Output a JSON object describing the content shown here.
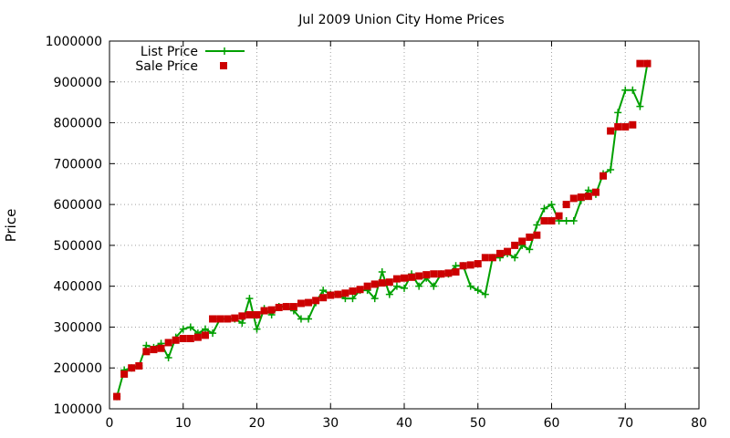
{
  "chart_data": {
    "type": "line",
    "title": "Jul 2009 Union City Home Prices",
    "xlabel": "",
    "ylabel": "Price",
    "xlim": [
      0,
      80
    ],
    "ylim": [
      100000,
      1000000
    ],
    "x_ticks": [
      "0",
      "10",
      "20",
      "30",
      "40",
      "50",
      "60",
      "70",
      "80"
    ],
    "y_ticks": [
      "100000",
      "200000",
      "300000",
      "400000",
      "500000",
      "600000",
      "700000",
      "800000",
      "900000",
      "1000000"
    ],
    "grid": true,
    "legend_position": "top-left",
    "series": [
      {
        "name": "List Price",
        "style": "line-plus",
        "color": "#00a000",
        "x": [
          1,
          2,
          3,
          4,
          5,
          6,
          7,
          8,
          9,
          10,
          11,
          12,
          13,
          14,
          15,
          16,
          17,
          18,
          19,
          20,
          21,
          22,
          23,
          24,
          25,
          26,
          27,
          28,
          29,
          30,
          31,
          32,
          33,
          34,
          35,
          36,
          37,
          38,
          39,
          40,
          41,
          42,
          43,
          44,
          45,
          46,
          47,
          48,
          49,
          50,
          51,
          52,
          53,
          54,
          55,
          56,
          57,
          58,
          59,
          60,
          61,
          62,
          63,
          64,
          65,
          66,
          67,
          68,
          69,
          70,
          71,
          72,
          73
        ],
        "values": [
          130000,
          195000,
          200000,
          205000,
          255000,
          250000,
          260000,
          225000,
          275000,
          295000,
          300000,
          285000,
          295000,
          285000,
          320000,
          320000,
          320000,
          310000,
          370000,
          295000,
          345000,
          330000,
          350000,
          350000,
          340000,
          320000,
          320000,
          360000,
          390000,
          380000,
          380000,
          370000,
          370000,
          390000,
          390000,
          370000,
          435000,
          380000,
          400000,
          395000,
          430000,
          400000,
          420000,
          400000,
          430000,
          430000,
          450000,
          450000,
          400000,
          390000,
          380000,
          470000,
          470000,
          480000,
          470000,
          500000,
          490000,
          550000,
          590000,
          600000,
          560000,
          560000,
          560000,
          610000,
          635000,
          625000,
          675000,
          685000,
          825000,
          880000,
          880000,
          840000,
          945000
        ]
      },
      {
        "name": "Sale Price",
        "style": "square-points",
        "color": "#cc0000",
        "x": [
          1,
          2,
          3,
          4,
          5,
          6,
          7,
          8,
          9,
          10,
          11,
          12,
          13,
          14,
          15,
          16,
          17,
          18,
          19,
          20,
          21,
          22,
          23,
          24,
          25,
          26,
          27,
          28,
          29,
          30,
          31,
          32,
          33,
          34,
          35,
          36,
          37,
          38,
          39,
          40,
          41,
          42,
          43,
          44,
          45,
          46,
          47,
          48,
          49,
          50,
          51,
          52,
          53,
          54,
          55,
          56,
          57,
          58,
          59,
          60,
          61,
          62,
          63,
          64,
          65,
          66,
          67,
          68,
          69,
          70,
          71,
          72,
          73
        ],
        "values": [
          130000,
          185000,
          200000,
          205000,
          240000,
          245000,
          248000,
          262000,
          268000,
          272000,
          272000,
          275000,
          280000,
          320000,
          320000,
          320000,
          322000,
          327000,
          330000,
          330000,
          340000,
          342000,
          348000,
          350000,
          350000,
          358000,
          360000,
          365000,
          372000,
          378000,
          380000,
          383000,
          388000,
          392000,
          400000,
          405000,
          408000,
          410000,
          418000,
          420000,
          422000,
          425000,
          428000,
          430000,
          430000,
          432000,
          435000,
          450000,
          452000,
          455000,
          470000,
          470000,
          480000,
          485000,
          500000,
          510000,
          520000,
          525000,
          560000,
          560000,
          572000,
          600000,
          615000,
          618000,
          620000,
          630000,
          670000,
          780000,
          790000,
          790000,
          795000,
          945000,
          945000
        ]
      }
    ]
  }
}
